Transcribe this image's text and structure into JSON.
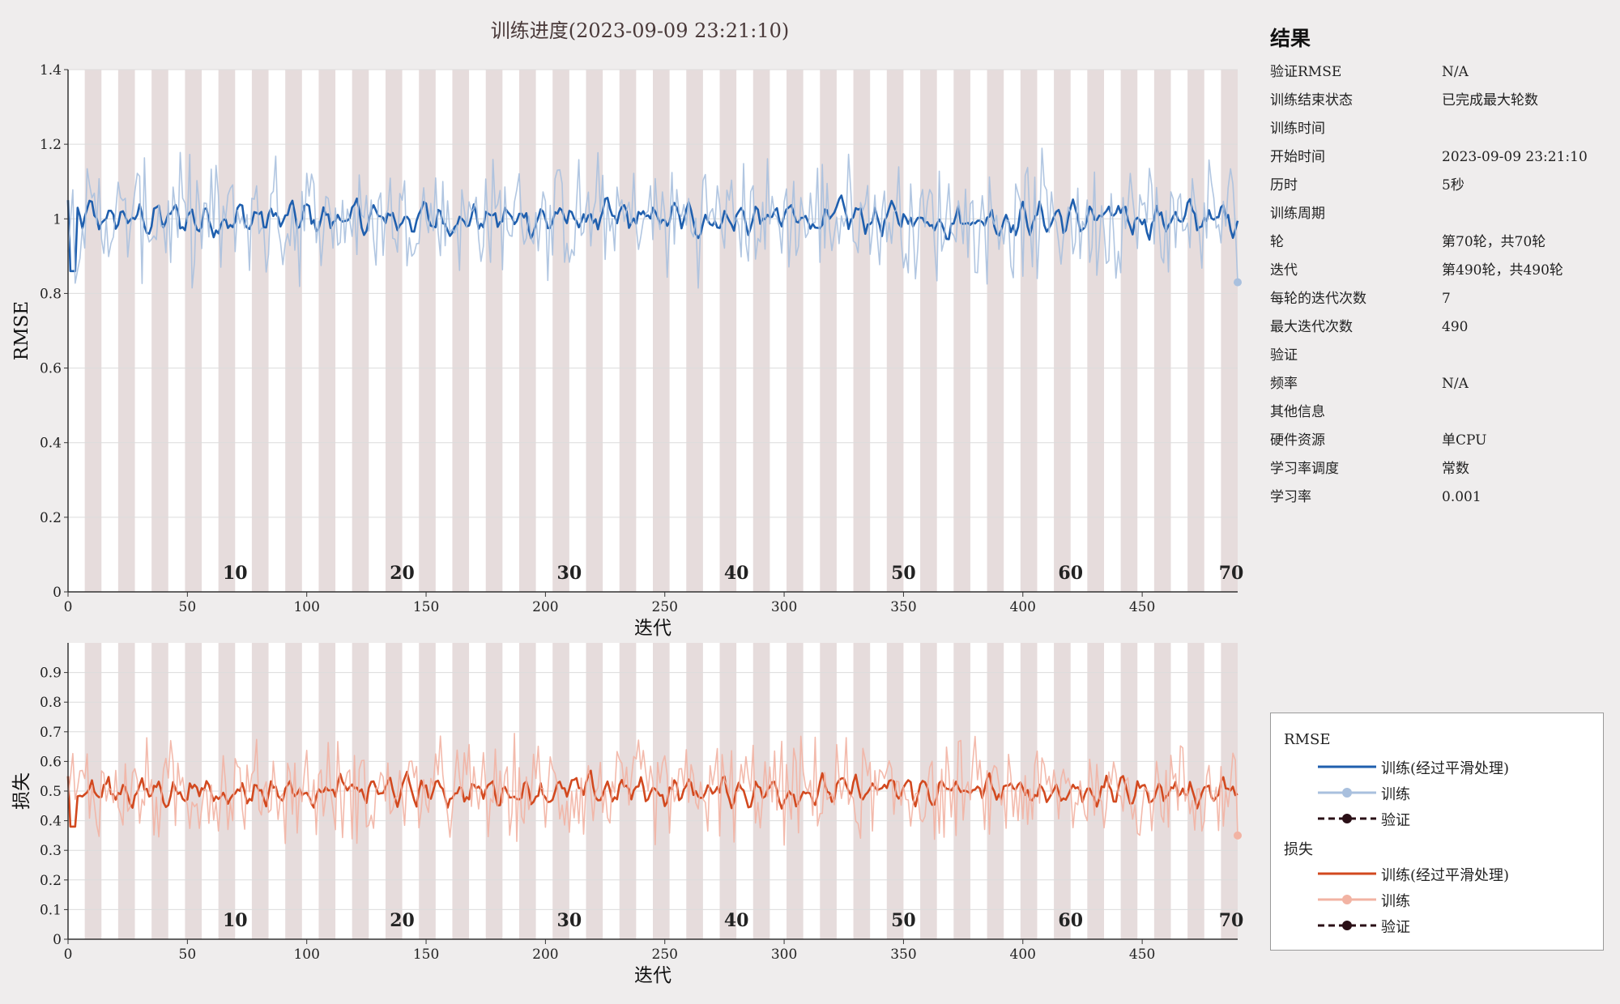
{
  "title": "训练进度(2023-09-09 23:21:10)",
  "chart_data": [
    {
      "type": "line",
      "name": "rmse-chart",
      "ylabel": "RMSE",
      "xlabel": "迭代",
      "xlim": [
        0,
        490
      ],
      "ylim": [
        0,
        1.4
      ],
      "xticks": [
        0,
        50,
        100,
        150,
        200,
        250,
        300,
        350,
        400,
        450
      ],
      "yticks": [
        "0",
        "0.2",
        "0.4",
        "0.6",
        "0.8",
        "1",
        "1.2",
        "1.4"
      ],
      "epoch_labels": [
        "10",
        "20",
        "30",
        "40",
        "50",
        "60",
        "70"
      ],
      "iterations_per_epoch": 7,
      "series": [
        {
          "name": "训练(经过平滑处理)",
          "color": "#1f5fae",
          "mean": 1.0,
          "smooth_amp": 0.05,
          "start": 1.05,
          "dip": 0.86
        },
        {
          "name": "训练",
          "color": "#a9c0de",
          "mean": 1.0,
          "raw_amp": 0.13,
          "final_value": 0.83
        }
      ]
    },
    {
      "type": "line",
      "name": "loss-chart",
      "ylabel": "损失",
      "xlabel": "迭代",
      "xlim": [
        0,
        490
      ],
      "ylim": [
        0,
        1.0
      ],
      "xticks": [
        0,
        50,
        100,
        150,
        200,
        250,
        300,
        350,
        400,
        450
      ],
      "yticks": [
        "0",
        "0.1",
        "0.2",
        "0.3",
        "0.4",
        "0.5",
        "0.6",
        "0.7",
        "0.8",
        "0.9"
      ],
      "epoch_labels": [
        "10",
        "20",
        "30",
        "40",
        "50",
        "60",
        "70"
      ],
      "iterations_per_epoch": 7,
      "series": [
        {
          "name": "训练(经过平滑处理)",
          "color": "#d2491f",
          "mean": 0.5,
          "smooth_amp": 0.055,
          "start": 0.55,
          "dip": 0.38
        },
        {
          "name": "训练",
          "color": "#f2b3a3",
          "mean": 0.5,
          "raw_amp": 0.14,
          "final_value": 0.35
        }
      ]
    }
  ],
  "results": {
    "title": "结果",
    "rows": [
      {
        "label": "验证RMSE",
        "value": "N/A"
      },
      {
        "label": "训练结束状态",
        "value": "已完成最大轮数"
      },
      {
        "label": "训练时间",
        "value": ""
      },
      {
        "label": "开始时间",
        "value": "2023-09-09 23:21:10"
      },
      {
        "label": "历时",
        "value": "5秒"
      },
      {
        "label": "训练周期",
        "value": ""
      },
      {
        "label": "轮",
        "value": "第70轮，共70轮"
      },
      {
        "label": "迭代",
        "value": "第490轮，共490轮"
      },
      {
        "label": "每轮的迭代次数",
        "value": "7"
      },
      {
        "label": "最大迭代次数",
        "value": "490"
      },
      {
        "label": "验证",
        "value": ""
      },
      {
        "label": "频率",
        "value": "N/A"
      },
      {
        "label": "其他信息",
        "value": ""
      },
      {
        "label": "硬件资源",
        "value": "单CPU"
      },
      {
        "label": "学习率调度",
        "value": "常数"
      },
      {
        "label": "学习率",
        "value": "0.001"
      }
    ]
  },
  "legend": {
    "rmse_title": "RMSE",
    "loss_title": "损失",
    "items": {
      "smoothed": "训练(经过平滑处理)",
      "train": "训练",
      "validation": "验证"
    },
    "colors": {
      "rmse_smoothed": "#1f5fae",
      "rmse_train": "#a9c0de",
      "loss_smoothed": "#d2491f",
      "loss_train": "#f2b3a3",
      "validation": "#2a0f16"
    }
  }
}
